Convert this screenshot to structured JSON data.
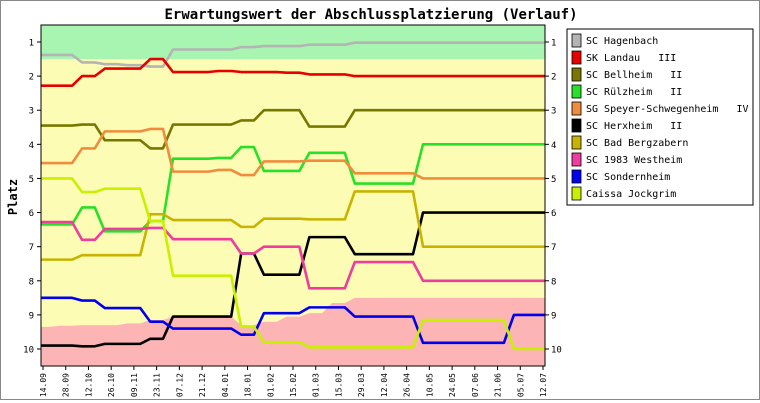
{
  "chart_data": {
    "type": "line",
    "title": "Erwartungswert der Abschlussplatzierung (Verlauf)",
    "ylabel": "Platz",
    "xlabel": "",
    "ylim": [
      1,
      10
    ],
    "y_inverted": true,
    "y_ticks": [
      "1",
      "2",
      "3",
      "4",
      "5",
      "6",
      "7",
      "8",
      "9",
      "10"
    ],
    "x": [
      "14.09",
      "28.09",
      "12.10",
      "26.10",
      "09.11",
      "23.11",
      "07.12",
      "21.12",
      "04.01",
      "18.01",
      "01.02",
      "15.02",
      "01.03",
      "15.03",
      "29.03",
      "12.04",
      "26.04",
      "10.05",
      "24.05",
      "07.06",
      "21.06",
      "05.07",
      "12.07"
    ],
    "background_bands": [
      {
        "name": "promotion",
        "color": "#a7f5b0",
        "top": [
          1,
          1,
          1,
          1,
          1,
          1,
          1,
          1,
          1,
          1,
          1,
          1,
          1,
          1,
          1,
          1,
          1,
          1,
          1,
          1,
          1,
          1,
          1
        ],
        "bottom": [
          1.5,
          1.5,
          1.5,
          1.5,
          1.5,
          1.5,
          1.5,
          1.5,
          1.5,
          1.5,
          1.5,
          1.5,
          1.5,
          1.5,
          1.5,
          1.5,
          1.5,
          1.5,
          1.5,
          1.5,
          1.5,
          1.5,
          1.5
        ]
      },
      {
        "name": "midfield",
        "color": "#fcfcb4",
        "top": [
          1.5,
          1.5,
          1.5,
          1.5,
          1.5,
          1.5,
          1.5,
          1.5,
          1.5,
          1.5,
          1.5,
          1.5,
          1.5,
          1.5,
          1.5,
          1.5,
          1.5,
          1.5,
          1.5,
          1.5,
          1.5,
          1.5,
          1.5
        ],
        "bottom": [
          9.35,
          9.32,
          9.3,
          9.3,
          9.25,
          9.15,
          9.05,
          9.05,
          9.05,
          9.3,
          9.2,
          9.05,
          8.95,
          8.65,
          8.5,
          8.5,
          8.5,
          8.5,
          8.5,
          8.5,
          8.5,
          8.5,
          8.5
        ]
      },
      {
        "name": "relegation",
        "color": "#fcb4b4",
        "top": [
          9.35,
          9.32,
          9.3,
          9.3,
          9.25,
          9.15,
          9.05,
          9.05,
          9.05,
          9.3,
          9.2,
          9.05,
          8.95,
          8.65,
          8.5,
          8.5,
          8.5,
          8.5,
          8.5,
          8.5,
          8.5,
          8.5,
          8.5
        ],
        "bottom": [
          10.3,
          10.3,
          10.3,
          10.3,
          10.3,
          10.3,
          10.3,
          10.3,
          10.3,
          10.3,
          10.3,
          10.3,
          10.3,
          10.3,
          10.3,
          10.3,
          10.3,
          10.3,
          10.3,
          10.3,
          10.3,
          10.3,
          10.3
        ]
      }
    ],
    "series": [
      {
        "name": "SC Hagenbach",
        "color": "#b4b4b4",
        "values": [
          1.38,
          1.38,
          1.6,
          1.65,
          1.68,
          1.72,
          1.22,
          1.22,
          1.22,
          1.15,
          1.12,
          1.12,
          1.08,
          1.08,
          1.02,
          1.02,
          1.02,
          1.02,
          1.02,
          1.02,
          1.02,
          1.02,
          1.02
        ]
      },
      {
        "name": "SK Landau   III",
        "color": "#e80000",
        "values": [
          2.28,
          2.28,
          2.0,
          1.78,
          1.78,
          1.5,
          1.88,
          1.88,
          1.85,
          1.88,
          1.88,
          1.9,
          1.95,
          1.95,
          2.0,
          2.0,
          2.0,
          2.0,
          2.0,
          2.0,
          2.0,
          2.0,
          2.0
        ]
      },
      {
        "name": "SC Bellheim   II",
        "color": "#787800",
        "values": [
          3.45,
          3.45,
          3.42,
          3.88,
          3.88,
          4.12,
          3.42,
          3.42,
          3.42,
          3.3,
          3.0,
          3.0,
          3.48,
          3.48,
          3.0,
          3.0,
          3.0,
          3.0,
          3.0,
          3.0,
          3.0,
          3.0,
          3.0
        ]
      },
      {
        "name": "SC Rülzheim   II",
        "color": "#28e028",
        "values": [
          6.35,
          6.35,
          5.85,
          6.55,
          6.55,
          6.25,
          4.42,
          4.42,
          4.4,
          4.08,
          4.78,
          4.78,
          4.25,
          4.25,
          5.15,
          5.15,
          5.15,
          4.0,
          4.0,
          4.0,
          4.0,
          4.0,
          4.0
        ]
      },
      {
        "name": "SG Speyer-Schwegenheim   IV",
        "color": "#f08c3c",
        "values": [
          4.55,
          4.55,
          4.12,
          3.62,
          3.62,
          3.55,
          4.8,
          4.8,
          4.75,
          4.9,
          4.5,
          4.5,
          4.48,
          4.48,
          4.85,
          4.85,
          4.85,
          5.0,
          5.0,
          5.0,
          5.0,
          5.0,
          5.0
        ]
      },
      {
        "name": "SC Herxheim   II",
        "color": "#000000",
        "values": [
          9.9,
          9.9,
          9.92,
          9.85,
          9.85,
          9.7,
          9.05,
          9.05,
          9.05,
          7.2,
          7.82,
          7.82,
          6.72,
          6.72,
          7.22,
          7.22,
          7.22,
          6.0,
          6.0,
          6.0,
          6.0,
          6.0,
          6.0
        ]
      },
      {
        "name": "SC Bad Bergzabern",
        "color": "#c8b400",
        "values": [
          7.38,
          7.38,
          7.25,
          7.25,
          7.25,
          6.05,
          6.22,
          6.22,
          6.22,
          6.42,
          6.18,
          6.18,
          6.2,
          6.2,
          5.38,
          5.38,
          5.38,
          7.0,
          7.0,
          7.0,
          7.0,
          7.0,
          7.0
        ]
      },
      {
        "name": "SC 1983 Westheim",
        "color": "#ef3c9e",
        "values": [
          6.28,
          6.28,
          6.8,
          6.48,
          6.48,
          6.45,
          6.78,
          6.78,
          6.78,
          7.2,
          7.0,
          7.0,
          8.22,
          8.22,
          7.45,
          7.45,
          7.45,
          8.0,
          8.0,
          8.0,
          8.0,
          8.0,
          8.0
        ]
      },
      {
        "name": "SC Sondernheim",
        "color": "#0000ee",
        "values": [
          8.5,
          8.5,
          8.58,
          8.8,
          8.8,
          9.2,
          9.4,
          9.4,
          9.4,
          9.58,
          8.95,
          8.95,
          8.78,
          8.78,
          9.05,
          9.05,
          9.05,
          9.82,
          9.82,
          9.82,
          9.82,
          9.0,
          9.0
        ]
      },
      {
        "name": "Caissa Jockgrim",
        "color": "#c8f000",
        "values": [
          5.0,
          5.0,
          5.4,
          5.3,
          5.3,
          6.25,
          7.85,
          7.85,
          7.85,
          9.35,
          9.8,
          9.8,
          9.95,
          9.95,
          9.95,
          9.95,
          9.95,
          9.15,
          9.15,
          9.15,
          9.15,
          10.0,
          10.0
        ]
      }
    ],
    "grid": false,
    "legend_position": "right"
  }
}
